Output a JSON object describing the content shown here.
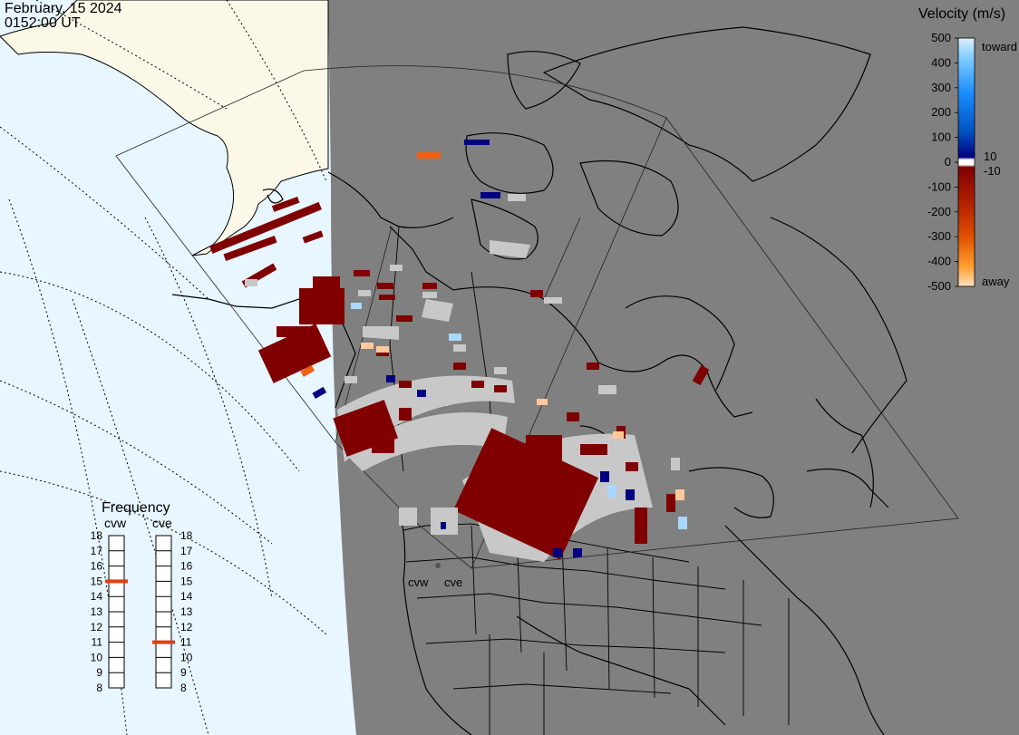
{
  "header": {
    "date": "February, 15 2024",
    "time": "0152:00 UT"
  },
  "legend": {
    "title": "Velocity (m/s)",
    "ticks": [
      "500",
      "400",
      "300",
      "200",
      "100",
      "0",
      "-100",
      "-200",
      "-300",
      "-400",
      "-500"
    ],
    "small_pos": "10",
    "small_neg": "-10",
    "toward": "toward",
    "away": "away"
  },
  "frequency": {
    "title": "Frequency",
    "left_label": "cvw",
    "right_label": "cve",
    "scale": [
      "18",
      "17",
      "16",
      "15",
      "14",
      "13",
      "12",
      "11",
      "10",
      "9",
      "8"
    ],
    "cvw_mhz": 15,
    "cve_mhz": 11,
    "indicator_color": "#e04010"
  },
  "radars": {
    "cvw": "cvw",
    "cve": "cve"
  },
  "colors": {
    "night": "#808080",
    "ocean_day": "#e8f6ff",
    "land_day": "#fbf8e8",
    "gs": "#c8c8c8",
    "dark_red": "#800000",
    "navy": "#000080",
    "light_blue": "#a8d8ff",
    "peach": "#ffc89a",
    "orange": "#f06010"
  }
}
